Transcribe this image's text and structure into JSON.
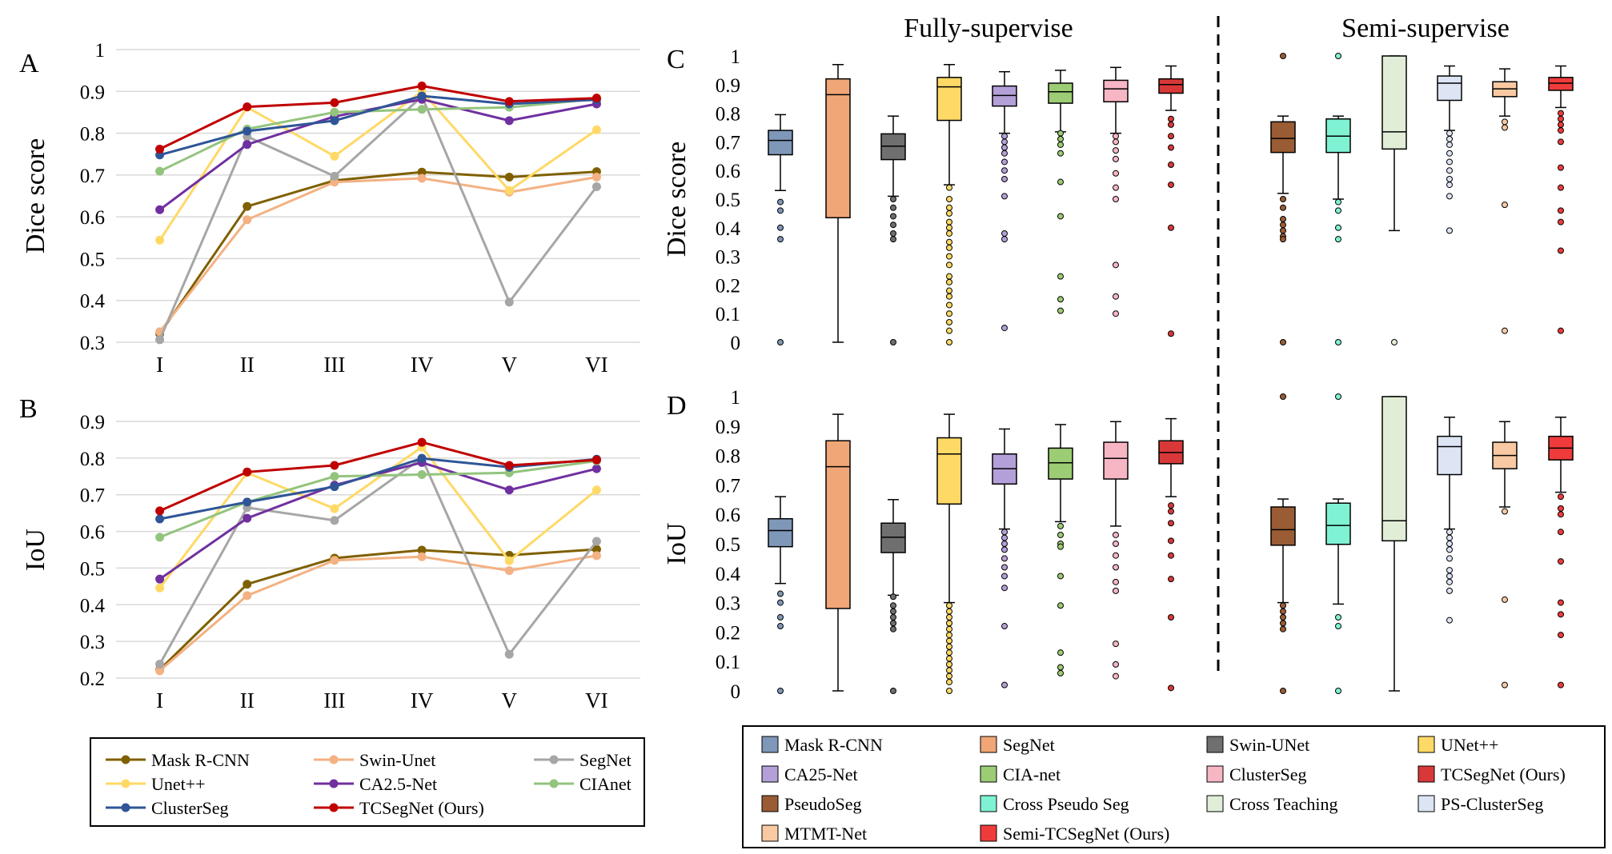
{
  "panels": {
    "A": "A",
    "B": "B",
    "C": "C",
    "D": "D",
    "fully": "Fully-supervise",
    "semi": "Semi-supervise"
  },
  "chart_data": [
    {
      "type": "line",
      "id": "A",
      "ylabel": "Dice score",
      "categories": [
        "I",
        "II",
        "III",
        "IV",
        "V",
        "VI"
      ],
      "ylim": [
        0.3,
        1.0
      ],
      "yticks": [
        "0.3",
        "0.4",
        "0.5",
        "0.6",
        "0.7",
        "0.8",
        "0.9",
        "1"
      ],
      "grid": true,
      "series": [
        {
          "name": "Mask R-CNN",
          "color": "#7f6000",
          "values": [
            0.32,
            0.625,
            0.687,
            0.707,
            0.695,
            0.708
          ]
        },
        {
          "name": "Swin-Unet",
          "color": "#f4b183",
          "values": [
            0.325,
            0.593,
            0.683,
            0.692,
            0.659,
            0.695
          ]
        },
        {
          "name": "SegNet",
          "color": "#a6a6a6",
          "values": [
            0.306,
            0.792,
            0.697,
            0.888,
            0.396,
            0.672
          ]
        },
        {
          "name": "Unet++",
          "color": "#ffd966",
          "values": [
            0.544,
            0.862,
            0.745,
            0.9,
            0.663,
            0.808
          ]
        },
        {
          "name": "CA2.5-Net",
          "color": "#7030a0",
          "values": [
            0.617,
            0.773,
            0.84,
            0.881,
            0.83,
            0.87
          ]
        },
        {
          "name": "CIAnet",
          "color": "#93c47d",
          "values": [
            0.709,
            0.81,
            0.85,
            0.857,
            0.862,
            0.882
          ]
        },
        {
          "name": "ClusterSeg",
          "color": "#2f5597",
          "values": [
            0.748,
            0.805,
            0.83,
            0.889,
            0.87,
            0.88
          ]
        },
        {
          "name": "TCSegNet (Ours)",
          "color": "#c00000",
          "values": [
            0.762,
            0.863,
            0.873,
            0.913,
            0.876,
            0.884
          ]
        }
      ]
    },
    {
      "type": "line",
      "id": "B",
      "ylabel": "IoU",
      "categories": [
        "I",
        "II",
        "III",
        "IV",
        "V",
        "VI"
      ],
      "ylim": [
        0.2,
        0.9
      ],
      "yticks": [
        "0.2",
        "0.3",
        "0.4",
        "0.5",
        "0.6",
        "0.7",
        "0.8",
        "0.9"
      ],
      "grid": true,
      "series": [
        {
          "name": "Mask R-CNN",
          "color": "#7f6000",
          "values": [
            0.223,
            0.456,
            0.527,
            0.549,
            0.535,
            0.551
          ]
        },
        {
          "name": "Swin-Unet",
          "color": "#f4b183",
          "values": [
            0.22,
            0.425,
            0.521,
            0.531,
            0.493,
            0.534
          ]
        },
        {
          "name": "SegNet",
          "color": "#a6a6a6",
          "values": [
            0.238,
            0.665,
            0.63,
            0.8,
            0.265,
            0.573
          ]
        },
        {
          "name": "Unet++",
          "color": "#ffd966",
          "values": [
            0.446,
            0.76,
            0.662,
            0.83,
            0.52,
            0.713
          ]
        },
        {
          "name": "CA2.5-Net",
          "color": "#7030a0",
          "values": [
            0.47,
            0.636,
            0.726,
            0.788,
            0.713,
            0.771
          ]
        },
        {
          "name": "CIAnet",
          "color": "#93c47d",
          "values": [
            0.584,
            0.68,
            0.75,
            0.755,
            0.76,
            0.792
          ]
        },
        {
          "name": "ClusterSeg",
          "color": "#2f5597",
          "values": [
            0.634,
            0.68,
            0.722,
            0.799,
            0.775,
            0.797
          ]
        },
        {
          "name": "TCSegNet (Ours)",
          "color": "#c00000",
          "values": [
            0.656,
            0.762,
            0.78,
            0.843,
            0.78,
            0.795
          ]
        }
      ]
    },
    {
      "type": "box",
      "id": "C",
      "ylabel": "Dice score",
      "ylim": [
        0,
        1
      ],
      "yticks": [
        "0",
        "0.1",
        "0.2",
        "0.3",
        "0.4",
        "0.5",
        "0.6",
        "0.7",
        "0.8",
        "0.9",
        "1"
      ],
      "boxes": [
        {
          "name": "Mask R-CNN",
          "color": "#7f97b8",
          "min": 0.53,
          "q1": 0.655,
          "median": 0.705,
          "q3": 0.74,
          "max": 0.795,
          "outliers": [
            0.49,
            0.46,
            0.4,
            0.36,
            0.0
          ]
        },
        {
          "name": "SegNet",
          "color": "#f0a676",
          "min": 0.0,
          "q1": 0.435,
          "median": 0.865,
          "q3": 0.92,
          "max": 0.97,
          "outliers": []
        },
        {
          "name": "Swin-UNet",
          "color": "#6f6f6f",
          "min": 0.51,
          "q1": 0.638,
          "median": 0.685,
          "q3": 0.728,
          "max": 0.79,
          "outliers": [
            0.5,
            0.47,
            0.44,
            0.41,
            0.38,
            0.36,
            0.0
          ]
        },
        {
          "name": "UNet++",
          "color": "#ffd966",
          "min": 0.55,
          "q1": 0.775,
          "median": 0.892,
          "q3": 0.925,
          "max": 0.97,
          "outliers": [
            0.54,
            0.5,
            0.47,
            0.45,
            0.42,
            0.4,
            0.38,
            0.35,
            0.33,
            0.3,
            0.27,
            0.23,
            0.21,
            0.18,
            0.16,
            0.13,
            0.1,
            0.07,
            0.04,
            0.0
          ]
        },
        {
          "name": "CA25-Net",
          "color": "#b4a0d8",
          "min": 0.73,
          "q1": 0.825,
          "median": 0.862,
          "q3": 0.895,
          "max": 0.945,
          "outliers": [
            0.72,
            0.7,
            0.68,
            0.66,
            0.63,
            0.6,
            0.57,
            0.51,
            0.38,
            0.36,
            0.05
          ]
        },
        {
          "name": "CIA-net",
          "color": "#9ccc74",
          "min": 0.735,
          "q1": 0.835,
          "median": 0.875,
          "q3": 0.905,
          "max": 0.95,
          "outliers": [
            0.73,
            0.71,
            0.69,
            0.66,
            0.56,
            0.44,
            0.23,
            0.15,
            0.11
          ]
        },
        {
          "name": "ClusterSeg",
          "color": "#f7b6c3",
          "min": 0.73,
          "q1": 0.84,
          "median": 0.885,
          "q3": 0.915,
          "max": 0.96,
          "outliers": [
            0.72,
            0.7,
            0.67,
            0.64,
            0.59,
            0.54,
            0.5,
            0.27,
            0.16,
            0.1
          ]
        },
        {
          "name": "TCSegNet (Ours)",
          "color": "#d93838",
          "min": 0.81,
          "q1": 0.87,
          "median": 0.9,
          "q3": 0.92,
          "max": 0.965,
          "outliers": [
            0.78,
            0.76,
            0.72,
            0.68,
            0.62,
            0.55,
            0.4,
            0.03
          ]
        },
        {
          "name": "PseudoSeg",
          "color": "#9a5c34",
          "min": 0.52,
          "q1": 0.663,
          "median": 0.712,
          "q3": 0.77,
          "max": 0.79,
          "outliers": [
            1.0,
            0.5,
            0.47,
            0.43,
            0.41,
            0.39,
            0.37,
            0.36,
            0.0
          ]
        },
        {
          "name": "Cross Pseudo Seg",
          "color": "#7ff2d4",
          "min": 0.5,
          "q1": 0.663,
          "median": 0.72,
          "q3": 0.78,
          "max": 0.79,
          "outliers": [
            1.0,
            0.49,
            0.46,
            0.4,
            0.36,
            0.0
          ]
        },
        {
          "name": "Cross Teaching",
          "color": "#e2edd7",
          "min": 0.39,
          "q1": 0.675,
          "median": 0.735,
          "q3": 1.0,
          "max": 1.0,
          "outliers": [
            0.0
          ]
        },
        {
          "name": "PS-ClusterSeg",
          "color": "#dde5f5",
          "min": 0.74,
          "q1": 0.845,
          "median": 0.905,
          "q3": 0.93,
          "max": 0.965,
          "outliers": [
            0.73,
            0.71,
            0.69,
            0.66,
            0.63,
            0.6,
            0.57,
            0.55,
            0.51,
            0.39
          ]
        },
        {
          "name": "MTMT-Net",
          "color": "#f8c9a2",
          "min": 0.79,
          "q1": 0.858,
          "median": 0.885,
          "q3": 0.91,
          "max": 0.955,
          "outliers": [
            0.77,
            0.75,
            0.48,
            0.04
          ]
        },
        {
          "name": "Semi-TCSegNet (Ours)",
          "color": "#ef3b3b",
          "min": 0.82,
          "q1": 0.88,
          "median": 0.905,
          "q3": 0.925,
          "max": 0.965,
          "outliers": [
            0.8,
            0.78,
            0.76,
            0.74,
            0.7,
            0.61,
            0.54,
            0.46,
            0.42,
            0.32,
            0.04
          ]
        }
      ]
    },
    {
      "type": "box",
      "id": "D",
      "ylabel": "IoU",
      "ylim": [
        0,
        1
      ],
      "yticks": [
        "0",
        "0.1",
        "0.2",
        "0.3",
        "0.4",
        "0.5",
        "0.6",
        "0.7",
        "0.8",
        "0.9",
        "1"
      ],
      "boxes": [
        {
          "name": "Mask R-CNN",
          "color": "#7f97b8",
          "min": 0.365,
          "q1": 0.49,
          "median": 0.545,
          "q3": 0.585,
          "max": 0.66,
          "outliers": [
            0.33,
            0.3,
            0.25,
            0.22,
            0.0
          ]
        },
        {
          "name": "SegNet",
          "color": "#f0a676",
          "min": 0.0,
          "q1": 0.28,
          "median": 0.762,
          "q3": 0.85,
          "max": 0.94,
          "outliers": []
        },
        {
          "name": "Swin-UNet",
          "color": "#6f6f6f",
          "min": 0.325,
          "q1": 0.47,
          "median": 0.522,
          "q3": 0.57,
          "max": 0.65,
          "outliers": [
            0.32,
            0.29,
            0.27,
            0.25,
            0.23,
            0.21,
            0.0
          ]
        },
        {
          "name": "UNet++",
          "color": "#ffd966",
          "min": 0.3,
          "q1": 0.635,
          "median": 0.805,
          "q3": 0.86,
          "max": 0.94,
          "outliers": [
            0.29,
            0.27,
            0.25,
            0.23,
            0.21,
            0.19,
            0.17,
            0.15,
            0.13,
            0.11,
            0.09,
            0.07,
            0.05,
            0.03,
            0.0
          ]
        },
        {
          "name": "CA25-Net",
          "color": "#b4a0d8",
          "min": 0.55,
          "q1": 0.703,
          "median": 0.755,
          "q3": 0.805,
          "max": 0.89,
          "outliers": [
            0.54,
            0.52,
            0.5,
            0.48,
            0.45,
            0.42,
            0.39,
            0.35,
            0.22,
            0.02
          ]
        },
        {
          "name": "CIA-net",
          "color": "#9ccc74",
          "min": 0.575,
          "q1": 0.72,
          "median": 0.775,
          "q3": 0.825,
          "max": 0.905,
          "outliers": [
            0.56,
            0.53,
            0.5,
            0.49,
            0.39,
            0.29,
            0.13,
            0.08,
            0.06
          ]
        },
        {
          "name": "ClusterSeg",
          "color": "#f7b6c3",
          "min": 0.56,
          "q1": 0.72,
          "median": 0.79,
          "q3": 0.845,
          "max": 0.915,
          "outliers": [
            0.53,
            0.5,
            0.46,
            0.42,
            0.37,
            0.34,
            0.16,
            0.09,
            0.05
          ]
        },
        {
          "name": "TCSegNet (Ours)",
          "color": "#d93838",
          "min": 0.66,
          "q1": 0.772,
          "median": 0.81,
          "q3": 0.85,
          "max": 0.925,
          "outliers": [
            0.63,
            0.61,
            0.57,
            0.51,
            0.46,
            0.38,
            0.25,
            0.01
          ]
        },
        {
          "name": "PseudoSeg",
          "color": "#9a5c34",
          "min": 0.3,
          "q1": 0.495,
          "median": 0.548,
          "q3": 0.625,
          "max": 0.652,
          "outliers": [
            1.0,
            0.29,
            0.27,
            0.25,
            0.23,
            0.21,
            0.0
          ]
        },
        {
          "name": "Cross Pseudo Seg",
          "color": "#7ff2d4",
          "min": 0.295,
          "q1": 0.498,
          "median": 0.562,
          "q3": 0.638,
          "max": 0.652,
          "outliers": [
            1.0,
            0.25,
            0.22,
            0.0
          ]
        },
        {
          "name": "Cross Teaching",
          "color": "#e2edd7",
          "min": 0.0,
          "q1": 0.51,
          "median": 0.578,
          "q3": 1.0,
          "max": 1.0,
          "outliers": []
        },
        {
          "name": "PS-ClusterSeg",
          "color": "#dde5f5",
          "min": 0.55,
          "q1": 0.735,
          "median": 0.83,
          "q3": 0.865,
          "max": 0.93,
          "outliers": [
            0.54,
            0.52,
            0.5,
            0.48,
            0.45,
            0.41,
            0.39,
            0.37,
            0.34,
            0.24
          ]
        },
        {
          "name": "MTMT-Net",
          "color": "#f8c9a2",
          "min": 0.625,
          "q1": 0.755,
          "median": 0.8,
          "q3": 0.845,
          "max": 0.915,
          "outliers": [
            0.61,
            0.31,
            0.02
          ]
        },
        {
          "name": "Semi-TCSegNet (Ours)",
          "color": "#ef3b3b",
          "min": 0.675,
          "q1": 0.785,
          "median": 0.825,
          "q3": 0.865,
          "max": 0.93,
          "outliers": [
            0.66,
            0.62,
            0.6,
            0.54,
            0.44,
            0.3,
            0.26,
            0.19,
            0.02
          ]
        }
      ]
    }
  ]
}
